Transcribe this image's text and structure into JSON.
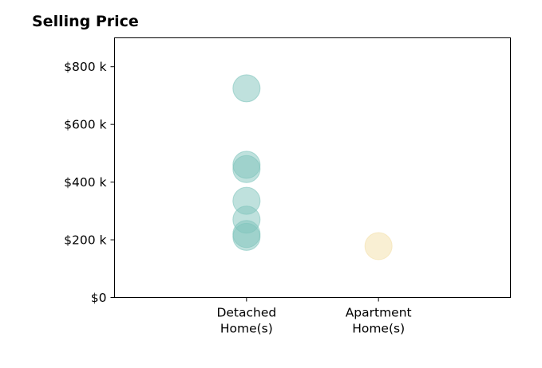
{
  "chart_data": {
    "type": "scatter",
    "title": "Selling Price",
    "xlabel": "",
    "ylabel": "",
    "categories": [
      "Detached\nHome(s)",
      "Apartment\nHome(s)"
    ],
    "ylim": [
      0,
      900
    ],
    "y_ticks": [
      {
        "value": 0,
        "label": "$0"
      },
      {
        "value": 200,
        "label": "$200 k"
      },
      {
        "value": 400,
        "label": "$400 k"
      },
      {
        "value": 600,
        "label": "$600 k"
      },
      {
        "value": 800,
        "label": "$800 k"
      }
    ],
    "grid": false,
    "series": [
      {
        "category": "Detached\nHome(s)",
        "color": "#7fc4bc",
        "values": [
          725,
          460,
          445,
          335,
          270,
          220,
          210
        ]
      },
      {
        "category": "Apartment\nHome(s)",
        "color": "#f3dfa8",
        "values": [
          178
        ]
      }
    ]
  }
}
